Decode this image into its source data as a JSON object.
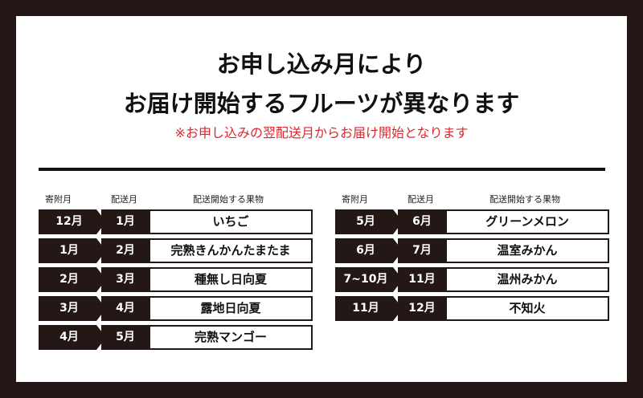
{
  "title_line1": "お申し込み月により",
  "title_line2": "お届け開始するフルーツが異なります",
  "subtitle": "※お申し込みの翌配送月からお届け開始となります",
  "headers": {
    "donation": "寄附月",
    "delivery": "配送月",
    "fruit": "配送開始する果物"
  },
  "left": [
    {
      "donation": "12月",
      "delivery": "1月",
      "fruit": "いちご"
    },
    {
      "donation": "1月",
      "delivery": "2月",
      "fruit": "完熟きんかんたまたま"
    },
    {
      "donation": "2月",
      "delivery": "3月",
      "fruit": "種無し日向夏"
    },
    {
      "donation": "3月",
      "delivery": "4月",
      "fruit": "露地日向夏"
    },
    {
      "donation": "4月",
      "delivery": "5月",
      "fruit": "完熟マンゴー"
    }
  ],
  "right": [
    {
      "donation": "5月",
      "delivery": "6月",
      "fruit": "グリーンメロン"
    },
    {
      "donation": "6月",
      "delivery": "7月",
      "fruit": "温室みかん"
    },
    {
      "donation": "7~10月",
      "delivery": "11月",
      "fruit": "温州みかん"
    },
    {
      "donation": "11月",
      "delivery": "12月",
      "fruit": "不知火"
    }
  ],
  "colors": {
    "frame": "#231815",
    "accent": "#d7282f"
  }
}
